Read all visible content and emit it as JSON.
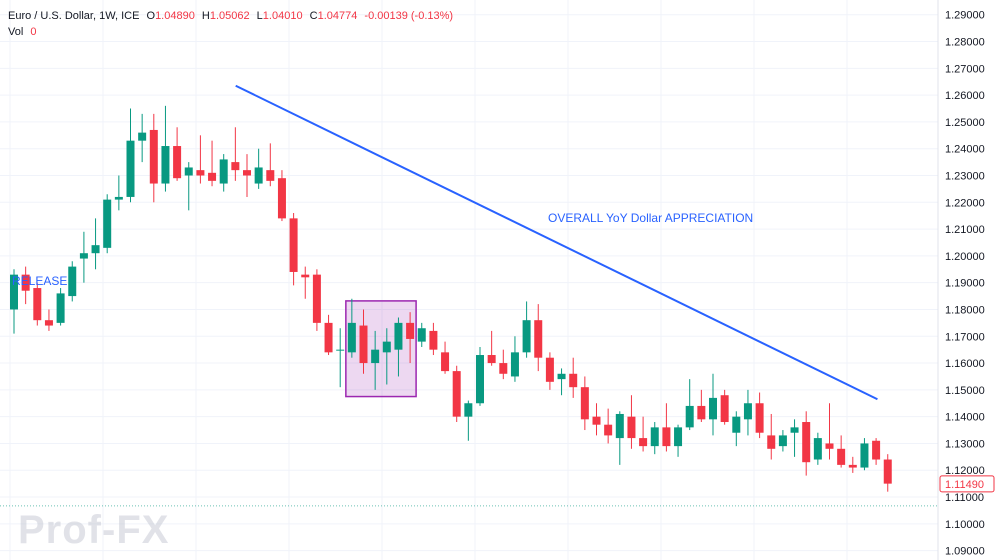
{
  "legend": {
    "symbol": "Euro / U.S. Dollar, 1W, ICE",
    "o_label": "O",
    "o_value": "1.04890",
    "h_label": "H",
    "h_value": "1.05062",
    "l_label": "L",
    "l_value": "1.04010",
    "c_label": "C",
    "c_value": "1.04774",
    "change": "-0.00139 (-0.13%)",
    "vol_label": "Vol",
    "vol_value": "0"
  },
  "colors": {
    "up": "#089981",
    "down": "#f23645",
    "trendline": "#2962ff",
    "box": "#9c27b0",
    "grid": "#f0f3fa"
  },
  "chart_data": {
    "type": "candlestick",
    "price_axis": {
      "ticks": [
        "1.29000",
        "1.28000",
        "1.27000",
        "1.26000",
        "1.25000",
        "1.24000",
        "1.23000",
        "1.22000",
        "1.21000",
        "1.20000",
        "1.19000",
        "1.18000",
        "1.17000",
        "1.16000",
        "1.15000",
        "1.14000",
        "1.13000",
        "1.12000",
        "1.11000",
        "1.10000",
        "1.09000"
      ],
      "range": [
        1.0865,
        1.2955
      ]
    },
    "last_price_label": "1.11490",
    "annotations": [
      {
        "text": "OVERALL YoY Dollar APPRECIATION"
      },
      {
        "text": "RELEASE"
      }
    ],
    "trendline": {
      "start": {
        "index": 18,
        "price": 1.2635
      },
      "end": {
        "index": 73,
        "price": 1.1465
      }
    },
    "box": {
      "from_index": 29,
      "to_index": 34,
      "top": 1.1832,
      "bottom": 1.1475
    },
    "candles": [
      {
        "o": 1.18,
        "h": 1.195,
        "l": 1.171,
        "c": 1.193
      },
      {
        "o": 1.193,
        "h": 1.196,
        "l": 1.182,
        "c": 1.187
      },
      {
        "o": 1.188,
        "h": 1.19,
        "l": 1.174,
        "c": 1.176
      },
      {
        "o": 1.176,
        "h": 1.18,
        "l": 1.172,
        "c": 1.174
      },
      {
        "o": 1.175,
        "h": 1.188,
        "l": 1.174,
        "c": 1.186
      },
      {
        "o": 1.185,
        "h": 1.198,
        "l": 1.183,
        "c": 1.196
      },
      {
        "o": 1.199,
        "h": 1.209,
        "l": 1.19,
        "c": 1.201
      },
      {
        "o": 1.201,
        "h": 1.214,
        "l": 1.195,
        "c": 1.204
      },
      {
        "o": 1.203,
        "h": 1.223,
        "l": 1.201,
        "c": 1.221
      },
      {
        "o": 1.221,
        "h": 1.23,
        "l": 1.217,
        "c": 1.222
      },
      {
        "o": 1.222,
        "h": 1.255,
        "l": 1.22,
        "c": 1.243
      },
      {
        "o": 1.243,
        "h": 1.253,
        "l": 1.235,
        "c": 1.246
      },
      {
        "o": 1.247,
        "h": 1.253,
        "l": 1.22,
        "c": 1.227
      },
      {
        "o": 1.227,
        "h": 1.256,
        "l": 1.224,
        "c": 1.241
      },
      {
        "o": 1.241,
        "h": 1.248,
        "l": 1.228,
        "c": 1.229
      },
      {
        "o": 1.23,
        "h": 1.235,
        "l": 1.217,
        "c": 1.233
      },
      {
        "o": 1.232,
        "h": 1.245,
        "l": 1.227,
        "c": 1.23
      },
      {
        "o": 1.231,
        "h": 1.243,
        "l": 1.226,
        "c": 1.228
      },
      {
        "o": 1.227,
        "h": 1.238,
        "l": 1.224,
        "c": 1.236
      },
      {
        "o": 1.235,
        "h": 1.248,
        "l": 1.228,
        "c": 1.232
      },
      {
        "o": 1.232,
        "h": 1.238,
        "l": 1.222,
        "c": 1.23
      },
      {
        "o": 1.227,
        "h": 1.24,
        "l": 1.225,
        "c": 1.233
      },
      {
        "o": 1.232,
        "h": 1.242,
        "l": 1.226,
        "c": 1.228
      },
      {
        "o": 1.229,
        "h": 1.232,
        "l": 1.213,
        "c": 1.214
      },
      {
        "o": 1.214,
        "h": 1.216,
        "l": 1.189,
        "c": 1.194
      },
      {
        "o": 1.193,
        "h": 1.196,
        "l": 1.184,
        "c": 1.192
      },
      {
        "o": 1.193,
        "h": 1.195,
        "l": 1.172,
        "c": 1.175
      },
      {
        "o": 1.175,
        "h": 1.178,
        "l": 1.163,
        "c": 1.164
      },
      {
        "o": 1.165,
        "h": 1.173,
        "l": 1.151,
        "c": 1.165
      },
      {
        "o": 1.164,
        "h": 1.184,
        "l": 1.162,
        "c": 1.175
      },
      {
        "o": 1.174,
        "h": 1.18,
        "l": 1.156,
        "c": 1.16
      },
      {
        "o": 1.16,
        "h": 1.172,
        "l": 1.15,
        "c": 1.165
      },
      {
        "o": 1.164,
        "h": 1.173,
        "l": 1.152,
        "c": 1.168
      },
      {
        "o": 1.165,
        "h": 1.177,
        "l": 1.155,
        "c": 1.175
      },
      {
        "o": 1.175,
        "h": 1.179,
        "l": 1.16,
        "c": 1.169
      },
      {
        "o": 1.168,
        "h": 1.175,
        "l": 1.166,
        "c": 1.173
      },
      {
        "o": 1.172,
        "h": 1.175,
        "l": 1.163,
        "c": 1.165
      },
      {
        "o": 1.164,
        "h": 1.168,
        "l": 1.156,
        "c": 1.157
      },
      {
        "o": 1.157,
        "h": 1.159,
        "l": 1.138,
        "c": 1.14
      },
      {
        "o": 1.14,
        "h": 1.146,
        "l": 1.131,
        "c": 1.145
      },
      {
        "o": 1.145,
        "h": 1.166,
        "l": 1.144,
        "c": 1.163
      },
      {
        "o": 1.163,
        "h": 1.172,
        "l": 1.159,
        "c": 1.16
      },
      {
        "o": 1.16,
        "h": 1.165,
        "l": 1.154,
        "c": 1.156
      },
      {
        "o": 1.155,
        "h": 1.17,
        "l": 1.153,
        "c": 1.164
      },
      {
        "o": 1.164,
        "h": 1.183,
        "l": 1.162,
        "c": 1.176
      },
      {
        "o": 1.176,
        "h": 1.182,
        "l": 1.157,
        "c": 1.162
      },
      {
        "o": 1.162,
        "h": 1.164,
        "l": 1.15,
        "c": 1.153
      },
      {
        "o": 1.154,
        "h": 1.158,
        "l": 1.148,
        "c": 1.156
      },
      {
        "o": 1.156,
        "h": 1.162,
        "l": 1.147,
        "c": 1.151
      },
      {
        "o": 1.151,
        "h": 1.155,
        "l": 1.135,
        "c": 1.139
      },
      {
        "o": 1.14,
        "h": 1.145,
        "l": 1.133,
        "c": 1.137
      },
      {
        "o": 1.137,
        "h": 1.143,
        "l": 1.13,
        "c": 1.133
      },
      {
        "o": 1.132,
        "h": 1.142,
        "l": 1.122,
        "c": 1.141
      },
      {
        "o": 1.14,
        "h": 1.148,
        "l": 1.128,
        "c": 1.132
      },
      {
        "o": 1.132,
        "h": 1.14,
        "l": 1.127,
        "c": 1.129
      },
      {
        "o": 1.129,
        "h": 1.138,
        "l": 1.126,
        "c": 1.136
      },
      {
        "o": 1.136,
        "h": 1.145,
        "l": 1.127,
        "c": 1.129
      },
      {
        "o": 1.129,
        "h": 1.137,
        "l": 1.125,
        "c": 1.136
      },
      {
        "o": 1.136,
        "h": 1.154,
        "l": 1.135,
        "c": 1.144
      },
      {
        "o": 1.144,
        "h": 1.15,
        "l": 1.138,
        "c": 1.139
      },
      {
        "o": 1.139,
        "h": 1.156,
        "l": 1.133,
        "c": 1.147
      },
      {
        "o": 1.148,
        "h": 1.15,
        "l": 1.137,
        "c": 1.138
      },
      {
        "o": 1.134,
        "h": 1.142,
        "l": 1.129,
        "c": 1.14
      },
      {
        "o": 1.139,
        "h": 1.15,
        "l": 1.133,
        "c": 1.145
      },
      {
        "o": 1.145,
        "h": 1.149,
        "l": 1.132,
        "c": 1.134
      },
      {
        "o": 1.133,
        "h": 1.141,
        "l": 1.124,
        "c": 1.128
      },
      {
        "o": 1.129,
        "h": 1.135,
        "l": 1.127,
        "c": 1.133
      },
      {
        "o": 1.134,
        "h": 1.139,
        "l": 1.125,
        "c": 1.136
      },
      {
        "o": 1.138,
        "h": 1.142,
        "l": 1.118,
        "c": 1.123
      },
      {
        "o": 1.124,
        "h": 1.134,
        "l": 1.122,
        "c": 1.132
      },
      {
        "o": 1.13,
        "h": 1.145,
        "l": 1.124,
        "c": 1.128
      },
      {
        "o": 1.128,
        "h": 1.133,
        "l": 1.121,
        "c": 1.122
      },
      {
        "o": 1.122,
        "h": 1.125,
        "l": 1.119,
        "c": 1.121
      },
      {
        "o": 1.121,
        "h": 1.132,
        "l": 1.12,
        "c": 1.13
      },
      {
        "o": 1.131,
        "h": 1.132,
        "l": 1.122,
        "c": 1.124
      },
      {
        "o": 1.124,
        "h": 1.126,
        "l": 1.112,
        "c": 1.115
      }
    ]
  },
  "watermark": {
    "text": "Prof-FX"
  }
}
